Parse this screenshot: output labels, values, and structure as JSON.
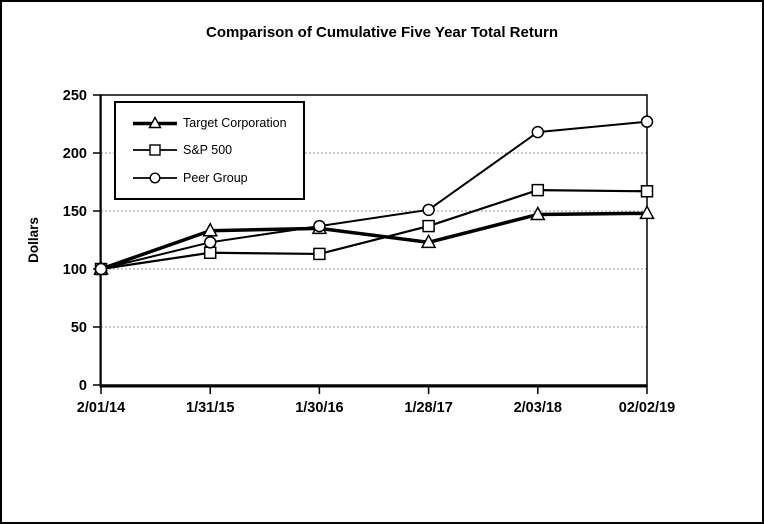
{
  "title": "Comparison of Cumulative Five Year Total Return",
  "legend": {
    "items": [
      {
        "label": "Target Corporation",
        "marker_icon": "triangle-marker-icon"
      },
      {
        "label": "S&P 500",
        "marker_icon": "square-marker-icon"
      },
      {
        "label": "Peer Group",
        "marker_icon": "circle-marker-icon"
      }
    ]
  },
  "chart_data": {
    "type": "line",
    "title": "Comparison of Cumulative Five Year Total Return",
    "xlabel": "",
    "ylabel": "Dollars",
    "categories": [
      "2/01/14",
      "1/31/15",
      "1/30/16",
      "1/28/17",
      "2/03/18",
      "02/02/19"
    ],
    "series": [
      {
        "name": "Target Corporation",
        "marker": "triangle",
        "line_width": 3.5,
        "values": [
          100,
          133,
          135,
          123,
          147,
          148
        ]
      },
      {
        "name": "S&P 500",
        "marker": "square",
        "line_width": 2.2,
        "values": [
          100,
          114,
          113,
          137,
          168,
          167
        ]
      },
      {
        "name": "Peer Group",
        "marker": "circle",
        "line_width": 2,
        "values": [
          100,
          123,
          137,
          151,
          218,
          227
        ]
      }
    ],
    "ylim": [
      0,
      250
    ],
    "y_ticks": [
      0,
      50,
      100,
      150,
      200,
      250
    ],
    "grid": true,
    "legend_position": "upper-left",
    "colors": {
      "line": "#000000",
      "marker_fill": "#ffffff",
      "grid": "#999999",
      "background": "#ffffff",
      "border": "#000000"
    }
  }
}
